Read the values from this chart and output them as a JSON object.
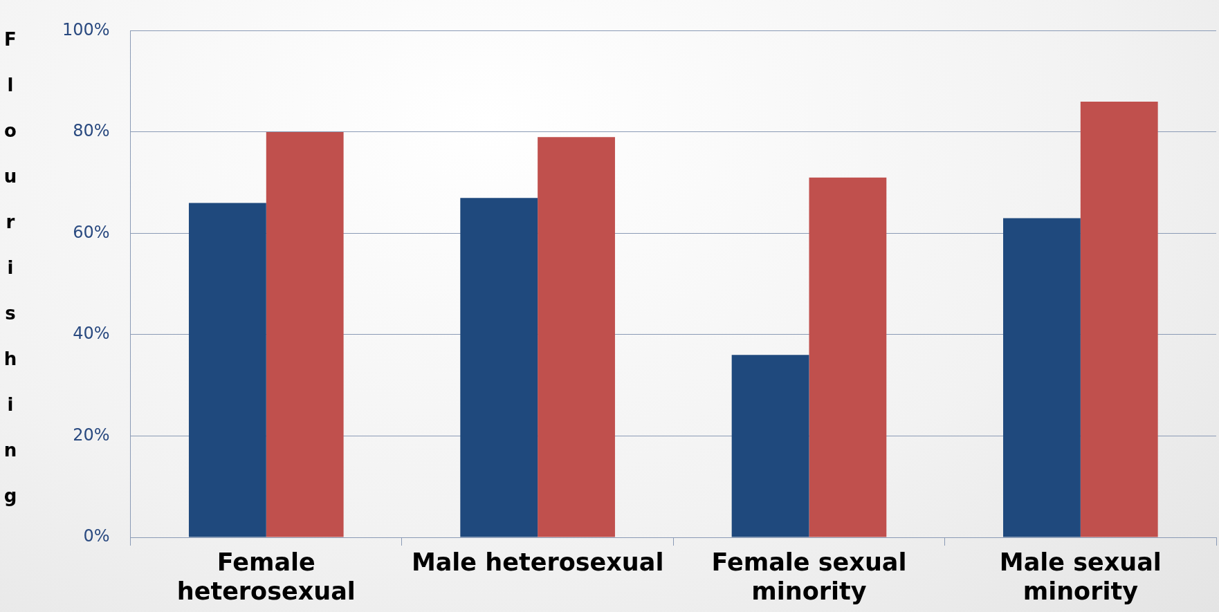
{
  "chart_data": {
    "type": "bar",
    "ylabel": "Flourishing",
    "categories": [
      "Female heterosexual",
      "Male heterosexual",
      "Female sexual minority",
      "Male sexual minority"
    ],
    "series": [
      {
        "color": "#1f497d",
        "values": [
          66,
          67,
          36,
          63
        ]
      },
      {
        "color": "#c0504d",
        "values": [
          80,
          79,
          71,
          86
        ]
      }
    ],
    "ylim": [
      0,
      100
    ],
    "yticks": [
      {
        "value": 0,
        "label": "0%"
      },
      {
        "value": 20,
        "label": "20%"
      },
      {
        "value": 40,
        "label": "40%"
      },
      {
        "value": 60,
        "label": "60%"
      },
      {
        "value": 80,
        "label": "80%"
      },
      {
        "value": 100,
        "label": "100%"
      }
    ],
    "grid": "y",
    "legend": false
  }
}
